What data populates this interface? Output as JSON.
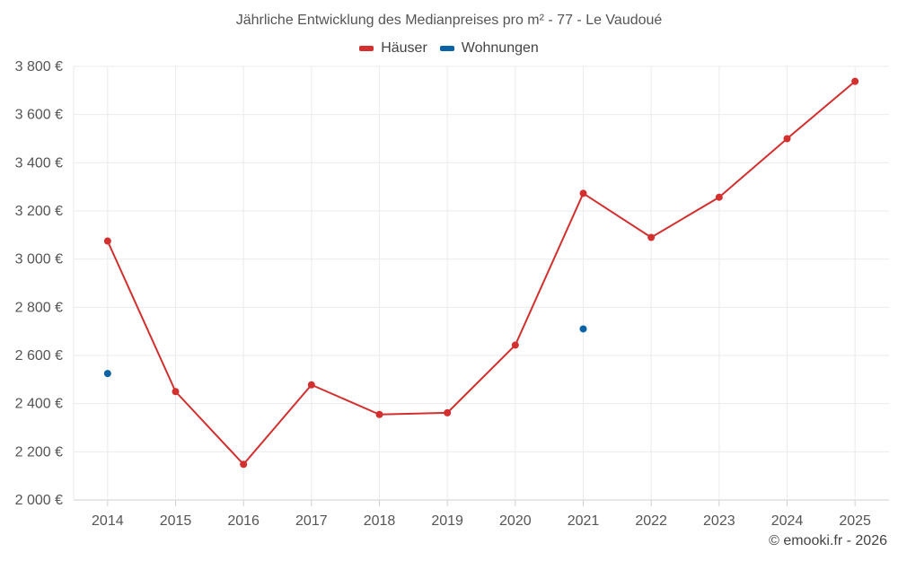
{
  "chart_data": {
    "type": "line",
    "title": "Jährliche Entwicklung des Medianpreises pro m² - 77 - Le Vaudoué",
    "categories": [
      "2014",
      "2015",
      "2016",
      "2017",
      "2018",
      "2019",
      "2020",
      "2021",
      "2022",
      "2023",
      "2024",
      "2025"
    ],
    "yticks": [
      "2 000 €",
      "2 200 €",
      "2 400 €",
      "2 600 €",
      "2 800 €",
      "3 000 €",
      "3 200 €",
      "3 400 €",
      "3 600 €",
      "3 800 €"
    ],
    "ylim": [
      2000,
      3800
    ],
    "grid": true,
    "legend_position": "top-center",
    "series": [
      {
        "name": "Häuser",
        "color": "#d32f2f",
        "style": "line",
        "values": [
          3075,
          2450,
          2148,
          2478,
          2355,
          2362,
          2643,
          3273,
          3090,
          3257,
          3500,
          3738
        ]
      },
      {
        "name": "Wohnungen",
        "color": "#0b63a5",
        "style": "points",
        "values": [
          2525,
          null,
          null,
          null,
          null,
          null,
          null,
          2710,
          null,
          null,
          null,
          null
        ]
      }
    ],
    "credit": "© emooki.fr - 2026"
  }
}
